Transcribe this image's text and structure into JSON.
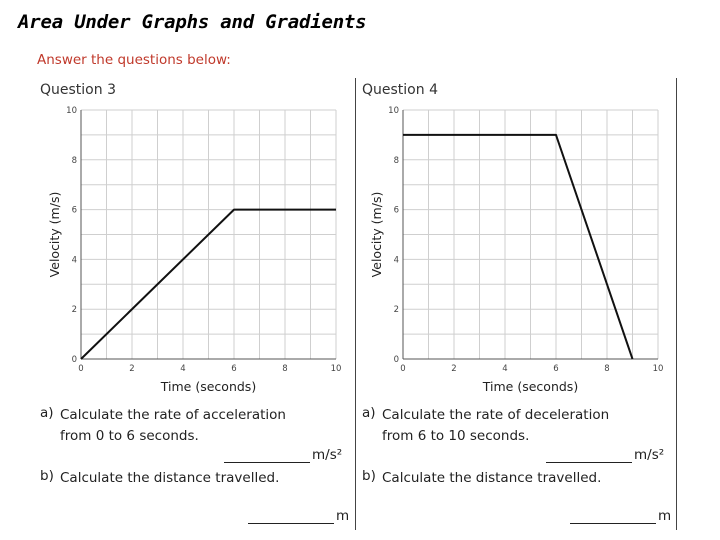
{
  "page": {
    "title": "Area Under Graphs and Gradients",
    "subtitle": "Answer the questions below:"
  },
  "questions": [
    {
      "label": "Question 3",
      "part_a_letter": "a)",
      "part_a_line1": "Calculate the rate of acceleration",
      "part_a_line2": "from 0 to 6 seconds.",
      "part_a_unit": "m/s²",
      "part_b_letter": "b)",
      "part_b_text": "Calculate the distance travelled.",
      "part_b_unit": "m"
    },
    {
      "label": "Question 4",
      "part_a_letter": "a)",
      "part_a_line1": "Calculate the rate of deceleration",
      "part_a_line2": "from 6 to 10 seconds.",
      "part_a_unit": "m/s²",
      "part_b_letter": "b)",
      "part_b_text": "Calculate the distance travelled.",
      "part_b_unit": "m"
    }
  ],
  "chart_data": [
    {
      "type": "line",
      "xlabel": "Time (seconds)",
      "ylabel": "Velocity (m/s)",
      "xlim": [
        0,
        10
      ],
      "ylim": [
        0,
        10
      ],
      "xticks": [
        0,
        2,
        4,
        6,
        8,
        10
      ],
      "yticks": [
        0,
        2,
        4,
        6,
        8,
        10
      ],
      "grid": true,
      "series": [
        {
          "x": [
            0,
            6,
            10
          ],
          "y": [
            0,
            6,
            6
          ]
        }
      ]
    },
    {
      "type": "line",
      "xlabel": "Time (seconds)",
      "ylabel": "Velocity (m/s)",
      "xlim": [
        0,
        10
      ],
      "ylim": [
        0,
        10
      ],
      "xticks": [
        0,
        2,
        4,
        6,
        8,
        10
      ],
      "yticks": [
        0,
        2,
        4,
        6,
        8,
        10
      ],
      "grid": true,
      "series": [
        {
          "x": [
            0,
            6,
            9
          ],
          "y": [
            9,
            9,
            0
          ]
        }
      ]
    }
  ]
}
